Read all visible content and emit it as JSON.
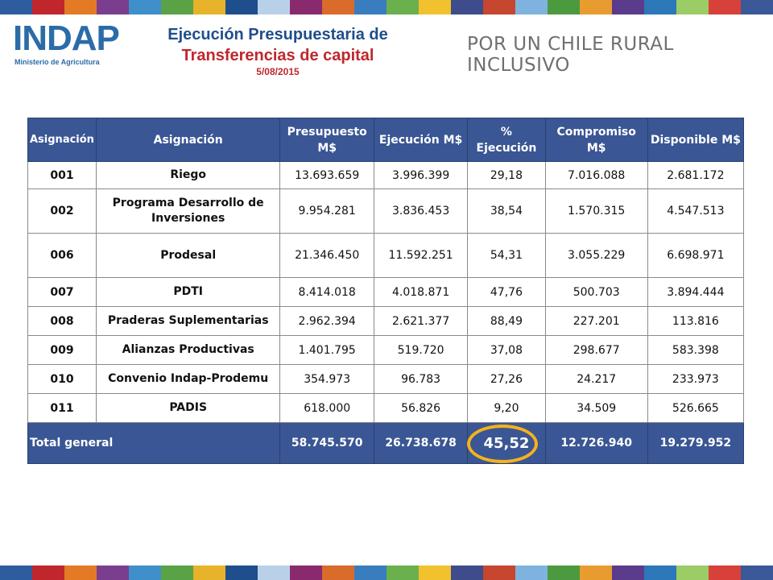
{
  "header": {
    "logo_text": "INDAP",
    "logo_subtext": "Ministerio de Agricultura",
    "title_line1": "Ejecución Presupuestaria de",
    "title_line2": "Transferencias de capital",
    "date": "5/08/2015",
    "slogan": "POR UN CHILE RURAL INCLUSIVO"
  },
  "colors": {
    "title_blue": "#1f4e8c",
    "title_red": "#c0272d",
    "table_header_bg": "#3a5694",
    "highlight_ring": "#f5b21b",
    "stripe": [
      "#2e5d9f",
      "#c0272d",
      "#e37b26",
      "#7a3e8f",
      "#3f8fcb",
      "#5aa246",
      "#e6b32a",
      "#1f4e8c",
      "#b9d1e8",
      "#8a2a6e",
      "#d96c2b",
      "#3a7dbf",
      "#6ab04c",
      "#f2c12e",
      "#3e4c8b",
      "#c7462f",
      "#7fb3df",
      "#4c9a3f",
      "#e89b2f",
      "#5a3b8c",
      "#2d78b8",
      "#9ccc65",
      "#d8403a",
      "#3b5998"
    ]
  },
  "table": {
    "headers": [
      "Asignación",
      "Asignación",
      "Presupuesto M$",
      "Ejecución M$",
      "% Ejecución",
      "Compromiso M$",
      "Disponible M$"
    ],
    "rows": [
      {
        "code": "001",
        "name": "Riego",
        "presupuesto": "13.693.659",
        "ejecucion": "3.996.399",
        "pct": "29,18",
        "compromiso": "7.016.088",
        "disponible": "2.681.172"
      },
      {
        "code": "002",
        "name": "Programa Desarrollo de Inversiones",
        "presupuesto": "9.954.281",
        "ejecucion": "3.836.453",
        "pct": "38,54",
        "compromiso": "1.570.315",
        "disponible": "4.547.513"
      },
      {
        "code": "006",
        "name": "Prodesal",
        "presupuesto": "21.346.450",
        "ejecucion": "11.592.251",
        "pct": "54,31",
        "compromiso": "3.055.229",
        "disponible": "6.698.971"
      },
      {
        "code": "007",
        "name": "PDTI",
        "presupuesto": "8.414.018",
        "ejecucion": "4.018.871",
        "pct": "47,76",
        "compromiso": "500.703",
        "disponible": "3.894.444"
      },
      {
        "code": "008",
        "name": "Praderas Suplementarias",
        "presupuesto": "2.962.394",
        "ejecucion": "2.621.377",
        "pct": "88,49",
        "compromiso": "227.201",
        "disponible": "113.816"
      },
      {
        "code": "009",
        "name": "Alianzas Productivas",
        "presupuesto": "1.401.795",
        "ejecucion": "519.720",
        "pct": "37,08",
        "compromiso": "298.677",
        "disponible": "583.398"
      },
      {
        "code": "010",
        "name": "Convenio Indap-Prodemu",
        "presupuesto": "354.973",
        "ejecucion": "96.783",
        "pct": "27,26",
        "compromiso": "24.217",
        "disponible": "233.973"
      },
      {
        "code": "011",
        "name": "PADIS",
        "presupuesto": "618.000",
        "ejecucion": "56.826",
        "pct": "9,20",
        "compromiso": "34.509",
        "disponible": "526.665"
      }
    ],
    "total": {
      "label": "Total general",
      "presupuesto": "58.745.570",
      "ejecucion": "26.738.678",
      "pct": "45,52",
      "compromiso": "12.726.940",
      "disponible": "19.279.952"
    }
  }
}
